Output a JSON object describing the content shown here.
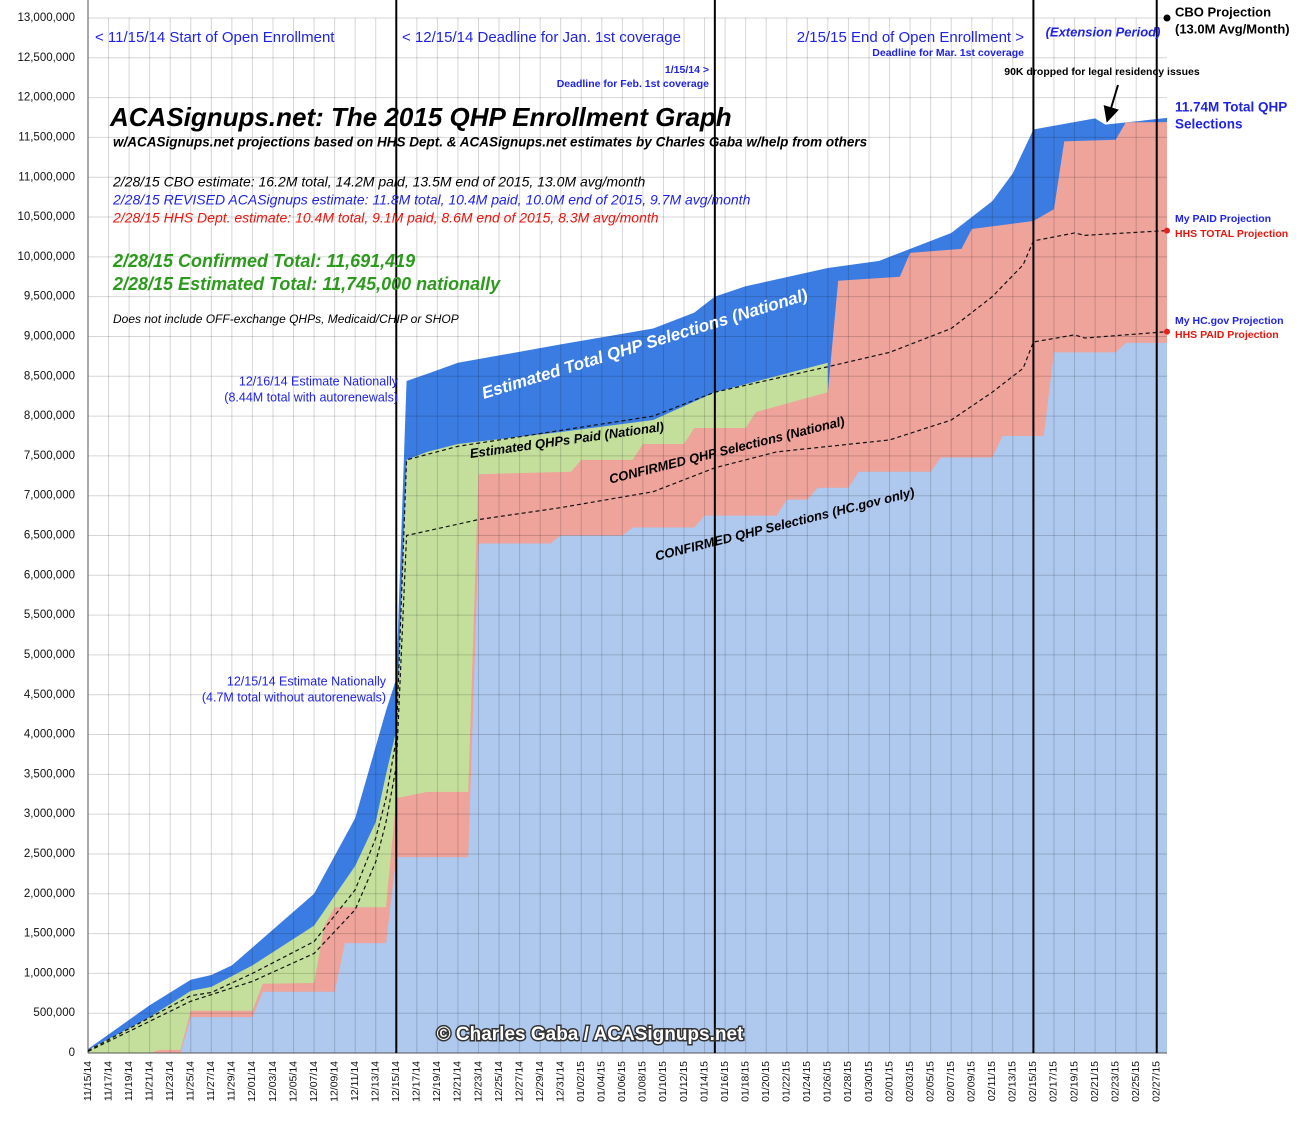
{
  "chart_data": {
    "type": "area",
    "title": "ACASignups.net: The 2015 QHP Enrollment Graph",
    "subtitle": "w/ACASignups.net projections based on HHS Dept. & ACASignups.net estimates by Charles Gaba w/help from others",
    "notes": [
      "2/28/15 CBO estimate: 16.2M total, 14.2M paid, 13.5M end of 2015, 13.0M avg/month",
      "2/28/15 REVISED ACASignups estimate: 11.8M total, 10.4M paid, 10.0M end of 2015, 9.7M avg/month",
      "2/28/15 HHS Dept. estimate: 10.4M total, 9.1M paid, 8.6M end of 2015, 8.3M avg/month",
      "2/28/15 Confirmed Total: 11,691,419",
      "2/28/15 Estimated Total: 11,745,000 nationally",
      "Does not include OFF-exchange QHPs, Medicaid/CHIP or SHOP"
    ],
    "annotations": [
      "< 11/15/14 Start of Open Enrollment",
      "< 12/15/14 Deadline for Jan. 1st coverage",
      "1/15/14 >",
      "Deadline for Feb. 1st coverage",
      "2/15/15 End of Open Enrollment >",
      "Deadline for Mar. 1st coverage",
      "(Extension Period)",
      "(13.0M Avg/Month)",
      "90K dropped for legal residency issues",
      "11.74M Total QHP",
      "Selections",
      "My PAID Projection",
      "My HC.gov Projection",
      "12/16/14 Estimate Nationally",
      "(8.44M total with autorenewals)",
      "12/15/14 Estimate Nationally",
      "(4.7M total without autorenewals)",
      "© Charles Gaba / ACASignups.net"
    ],
    "x": [
      "11/15/14",
      "11/17/14",
      "11/19/14",
      "11/21/14",
      "11/23/14",
      "11/25/14",
      "11/27/14",
      "11/29/14",
      "12/01/14",
      "12/03/14",
      "12/05/14",
      "12/07/14",
      "12/09/14",
      "12/11/14",
      "12/13/14",
      "12/15/14",
      "12/17/14",
      "12/19/14",
      "12/21/14",
      "12/23/14",
      "12/25/14",
      "12/27/14",
      "12/29/14",
      "12/31/14",
      "01/02/15",
      "01/04/15",
      "01/06/15",
      "01/08/15",
      "01/10/15",
      "01/12/15",
      "01/14/15",
      "01/16/15",
      "01/18/15",
      "01/20/15",
      "01/22/15",
      "01/24/15",
      "01/26/15",
      "01/28/15",
      "01/30/15",
      "02/01/15",
      "02/03/15",
      "02/05/15",
      "02/07/15",
      "02/09/15",
      "02/11/15",
      "02/13/15",
      "02/15/15",
      "02/17/15",
      "02/19/15",
      "02/21/15",
      "02/23/15",
      "02/25/15",
      "02/27/15"
    ],
    "xlim": [
      "11/15/14",
      "02/28/15"
    ],
    "event_lines": [
      "12/15/14",
      "01/15/15",
      "02/15/15",
      "02/27/15"
    ],
    "ylim": [
      0,
      13000000
    ],
    "yticks": [
      0,
      {
        "value": 500000,
        "label": "500,000"
      },
      {
        "value": 1000000,
        "label": "1,000,000"
      },
      {
        "value": 1500000,
        "label": "1,500,000"
      },
      {
        "value": 2000000,
        "label": "2,000,000"
      },
      {
        "value": 2500000,
        "label": "2,500,000"
      },
      {
        "value": 3000000,
        "label": "3,000,000"
      },
      {
        "value": 3500000,
        "label": "3,500,000"
      },
      {
        "value": 4000000,
        "label": "4,000,000"
      },
      {
        "value": 4500000,
        "label": "4,500,000"
      },
      {
        "value": 5000000,
        "label": "5,000,000"
      },
      {
        "value": 5500000,
        "label": "5,500,000"
      },
      {
        "value": 6000000,
        "label": "6,000,000"
      },
      {
        "value": 6500000,
        "label": "6,500,000"
      },
      {
        "value": 7000000,
        "label": "7,000,000"
      },
      {
        "value": 7500000,
        "label": "7,500,000"
      },
      {
        "value": 8000000,
        "label": "8,000,000"
      },
      {
        "value": 8500000,
        "label": "8,500,000"
      },
      {
        "value": 9000000,
        "label": "9,000,000"
      },
      {
        "value": 9500000,
        "label": "9,500,000"
      },
      {
        "value": 10000000,
        "label": "10,000,000"
      },
      {
        "value": 10500000,
        "label": "10,500,000"
      },
      {
        "value": 11000000,
        "label": "11,000,000"
      },
      {
        "value": 11500000,
        "label": "11,500,000"
      },
      {
        "value": 12000000,
        "label": "12,000,000"
      },
      {
        "value": 12500000,
        "label": "12,500,000"
      },
      {
        "value": 13000000,
        "label": "13,000,000"
      }
    ],
    "grid": true,
    "series": [
      {
        "name": "Estimated Total QHP Selections (National)",
        "style": "area",
        "color": "#3b7ce2",
        "x": [
          "11/15/14",
          "11/21/14",
          "11/25/14",
          "11/27/14",
          "11/29/14",
          "12/07/14",
          "12/11/14",
          "12/13/14",
          "12/14/14",
          "12/15/14",
          "12/16/14",
          "12/18/14",
          "12/21/14",
          "12/31/14",
          "01/09/15",
          "01/13/15",
          "01/15/15",
          "01/18/15",
          "01/26/15",
          "01/31/15",
          "02/07/15",
          "02/11/15",
          "02/13/15",
          "02/15/15",
          "02/21/15",
          "02/22/15",
          "02/28/15"
        ],
        "values": [
          50000,
          600000,
          920000,
          980000,
          1100000,
          2000000,
          2950000,
          3850000,
          4300000,
          4700000,
          8440000,
          8530000,
          8670000,
          8900000,
          9100000,
          9300000,
          9500000,
          9630000,
          9860000,
          9950000,
          10300000,
          10700000,
          11050000,
          11600000,
          11740000,
          11660000,
          11745000
        ]
      },
      {
        "name": "Estimated QHPs Paid (National)",
        "style": "area",
        "color": "#c4df9c",
        "x": [
          "11/15/14",
          "11/21/14",
          "11/25/14",
          "11/27/14",
          "12/01/14",
          "12/07/14",
          "12/11/14",
          "12/13/14",
          "12/14/14",
          "12/15/14",
          "12/16/14",
          "12/18/14",
          "12/21/14",
          "12/31/14",
          "01/09/15",
          "01/15/15",
          "01/26/15"
        ],
        "values": [
          40000,
          450000,
          780000,
          830000,
          1100000,
          1600000,
          2350000,
          2900000,
          3500000,
          4050000,
          7450000,
          7550000,
          7650000,
          7800000,
          7950000,
          8300000,
          8670000
        ]
      },
      {
        "name": "CONFIRMED QHP Selections (National)",
        "style": "area",
        "color": "#eea39b",
        "x": [
          "11/15/14",
          "11/21/14",
          "11/22/14",
          "11/24/14",
          "11/25/14",
          "12/01/14",
          "12/02/14",
          "12/07/14",
          "12/08/14",
          "12/09/14",
          "12/14/14",
          "12/15/14",
          "12/18/14",
          "12/22/14",
          "12/23/14",
          "01/01/15",
          "01/02/15",
          "01/07/15",
          "01/08/15",
          "01/12/15",
          "01/13/15",
          "01/18/15",
          "01/19/15",
          "01/26/15",
          "01/27/15",
          "02/02/15",
          "02/03/15",
          "02/08/15",
          "02/09/15",
          "02/15/15",
          "02/17/15",
          "02/18/15",
          "02/23/15",
          "02/24/15",
          "02/28/15"
        ],
        "values": [
          0,
          0,
          40000,
          40000,
          530000,
          530000,
          870000,
          880000,
          1600000,
          1830000,
          1830000,
          3200000,
          3280000,
          3280000,
          7270000,
          7300000,
          7450000,
          7450000,
          7650000,
          7650000,
          7850000,
          7850000,
          8050000,
          8300000,
          9700000,
          9750000,
          10050000,
          10100000,
          10350000,
          10450000,
          10600000,
          11450000,
          11470000,
          11690000,
          11691419
        ]
      },
      {
        "name": "CONFIRMED QHP Selections (HC.gov only)",
        "style": "area",
        "color": "#aec8ee",
        "x": [
          "11/15/14",
          "11/24/14",
          "11/25/14",
          "12/01/14",
          "12/02/14",
          "12/09/14",
          "12/10/14",
          "12/14/14",
          "12/15/14",
          "12/22/14",
          "12/23/14",
          "12/30/14",
          "12/31/14",
          "01/06/15",
          "01/07/15",
          "01/13/15",
          "01/14/15",
          "01/21/15",
          "01/22/15",
          "01/24/15",
          "01/25/15",
          "01/28/15",
          "01/29/15",
          "02/05/15",
          "02/06/15",
          "02/11/15",
          "02/12/15",
          "02/16/15",
          "02/17/15",
          "02/23/15",
          "02/24/15",
          "02/28/15"
        ],
        "values": [
          0,
          0,
          450000,
          450000,
          770000,
          770000,
          1380000,
          1380000,
          2460000,
          2460000,
          6400000,
          6400000,
          6500000,
          6500000,
          6600000,
          6600000,
          6750000,
          6750000,
          6950000,
          6950000,
          7100000,
          7100000,
          7300000,
          7300000,
          7480000,
          7480000,
          7750000,
          7750000,
          8800000,
          8800000,
          8920000,
          8920000
        ]
      },
      {
        "name": "HHS TOTAL Projection",
        "style": "dashed",
        "color": "#111111",
        "x": [
          "11/15/14",
          "11/25/14",
          "11/27/14",
          "12/01/14",
          "12/07/14",
          "12/11/14",
          "12/13/14",
          "12/14/14",
          "12/15/14",
          "12/16/14",
          "12/21/14",
          "12/31/14",
          "01/09/15",
          "01/13/15",
          "01/15/15",
          "01/26/15",
          "02/01/15",
          "02/07/15",
          "02/11/15",
          "02/14/15",
          "02/15/15",
          "02/19/15",
          "02/20/15",
          "02/28/15"
        ],
        "values": [
          30000,
          720000,
          760000,
          1000000,
          1400000,
          2050000,
          2700000,
          3200000,
          3950000,
          7450000,
          7620000,
          7820000,
          8000000,
          8200000,
          8300000,
          8620000,
          8800000,
          9100000,
          9500000,
          9900000,
          10200000,
          10300000,
          10270000,
          10330000
        ]
      },
      {
        "name": "HHS PAID Projection",
        "style": "dashed",
        "color": "#111111",
        "x": [
          "11/15/14",
          "11/25/14",
          "12/01/14",
          "12/07/14",
          "12/11/14",
          "12/13/14",
          "12/14/14",
          "12/15/14",
          "12/16/14",
          "12/23/14",
          "12/31/14",
          "01/09/15",
          "01/13/15",
          "01/15/15",
          "01/21/15",
          "02/01/15",
          "02/07/15",
          "02/11/15",
          "02/14/15",
          "02/15/15",
          "02/19/15",
          "02/20/15",
          "02/28/15"
        ],
        "values": [
          20000,
          650000,
          900000,
          1250000,
          1800000,
          2400000,
          2900000,
          3600000,
          6500000,
          6700000,
          6850000,
          7050000,
          7250000,
          7350000,
          7550000,
          7700000,
          7950000,
          8300000,
          8600000,
          8930000,
          9020000,
          8980000,
          9060000
        ]
      },
      {
        "name": "CBO Projection",
        "style": "point",
        "color": "#000000",
        "x": [
          "02/28/15"
        ],
        "values": [
          13000000
        ]
      }
    ]
  }
}
